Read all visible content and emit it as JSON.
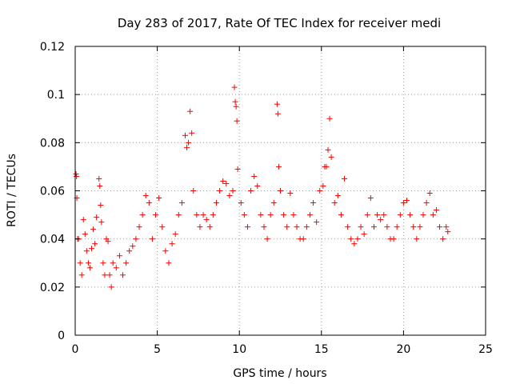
{
  "chart_data": {
    "type": "scatter",
    "title": "Day 283 of 2017, Rate Of TEC Index for receiver medi",
    "xlabel": "GPS time / hours",
    "ylabel": "ROTI / TECUs",
    "xlim": [
      0,
      25
    ],
    "ylim": [
      0,
      0.12
    ],
    "xticks": [
      0,
      5,
      10,
      15,
      20,
      25
    ],
    "xtick_labels": [
      "0",
      "5",
      "10",
      "15",
      "20",
      "25"
    ],
    "yticks": [
      0,
      0.02,
      0.04,
      0.06,
      0.08,
      0.1,
      0.12
    ],
    "ytick_labels": [
      "0",
      "0.02",
      "0.04",
      "0.06",
      "0.08",
      "0.1",
      "0.12"
    ],
    "grid": true,
    "marker": "+",
    "marker_color": "#ff0000",
    "series": [
      {
        "x": [
          0.05,
          0.08,
          0.1,
          0.15,
          0.2,
          0.3,
          0.4,
          0.5,
          0.6,
          0.7,
          0.8,
          0.9,
          1.0,
          1.1,
          1.2,
          1.3,
          1.45,
          1.5,
          1.55,
          1.6,
          1.7,
          1.8,
          1.9,
          2.0,
          2.1,
          2.2,
          2.3,
          2.5,
          2.7,
          2.9,
          3.1,
          3.3,
          3.5,
          3.7,
          3.9,
          4.1,
          4.3,
          4.5,
          4.7,
          4.9,
          5.1,
          5.3,
          5.5,
          5.7,
          5.9,
          6.1,
          6.3,
          6.5,
          6.7,
          6.8,
          6.9,
          7.0,
          7.1,
          7.2,
          7.4,
          7.6,
          7.8,
          8.0,
          8.2,
          8.4,
          8.6,
          8.8,
          9.0,
          9.2,
          9.4,
          9.6,
          9.7,
          9.75,
          9.8,
          9.85,
          9.9,
          10.1,
          10.3,
          10.5,
          10.7,
          10.9,
          11.1,
          11.3,
          11.5,
          11.7,
          11.9,
          12.1,
          12.3,
          12.35,
          12.4,
          12.5,
          12.7,
          12.9,
          13.1,
          13.3,
          13.5,
          13.7,
          13.9,
          14.1,
          14.3,
          14.5,
          14.7,
          14.9,
          15.1,
          15.2,
          15.3,
          15.4,
          15.5,
          15.6,
          15.8,
          16.0,
          16.2,
          16.4,
          16.6,
          16.8,
          17.0,
          17.2,
          17.4,
          17.6,
          17.8,
          18.0,
          18.2,
          18.4,
          18.6,
          18.8,
          19.0,
          19.2,
          19.4,
          19.6,
          19.8,
          20.0,
          20.2,
          20.4,
          20.6,
          20.8,
          21.0,
          21.2,
          21.4,
          21.6,
          21.8,
          22.0,
          22.2,
          22.4,
          22.6,
          22.7
        ],
        "y": [
          0.067,
          0.066,
          0.057,
          0.04,
          0.04,
          0.03,
          0.025,
          0.048,
          0.042,
          0.035,
          0.03,
          0.028,
          0.036,
          0.044,
          0.038,
          0.049,
          0.065,
          0.062,
          0.054,
          0.047,
          0.03,
          0.025,
          0.04,
          0.039,
          0.025,
          0.02,
          0.03,
          0.028,
          0.033,
          0.025,
          0.03,
          0.035,
          0.037,
          0.04,
          0.045,
          0.05,
          0.058,
          0.055,
          0.04,
          0.05,
          0.057,
          0.045,
          0.035,
          0.03,
          0.038,
          0.042,
          0.05,
          0.055,
          0.083,
          0.078,
          0.08,
          0.093,
          0.084,
          0.06,
          0.05,
          0.045,
          0.05,
          0.048,
          0.045,
          0.05,
          0.055,
          0.06,
          0.064,
          0.063,
          0.058,
          0.06,
          0.103,
          0.097,
          0.095,
          0.089,
          0.069,
          0.055,
          0.05,
          0.045,
          0.06,
          0.066,
          0.062,
          0.05,
          0.045,
          0.04,
          0.05,
          0.055,
          0.096,
          0.092,
          0.07,
          0.06,
          0.05,
          0.045,
          0.059,
          0.05,
          0.045,
          0.04,
          0.04,
          0.045,
          0.05,
          0.055,
          0.047,
          0.06,
          0.062,
          0.07,
          0.07,
          0.077,
          0.09,
          0.074,
          0.055,
          0.058,
          0.05,
          0.065,
          0.045,
          0.04,
          0.038,
          0.04,
          0.045,
          0.042,
          0.05,
          0.057,
          0.045,
          0.05,
          0.048,
          0.05,
          0.045,
          0.04,
          0.04,
          0.045,
          0.05,
          0.055,
          0.056,
          0.05,
          0.045,
          0.04,
          0.045,
          0.05,
          0.055,
          0.059,
          0.05,
          0.052,
          0.045,
          0.04,
          0.045,
          0.043
        ]
      }
    ]
  }
}
